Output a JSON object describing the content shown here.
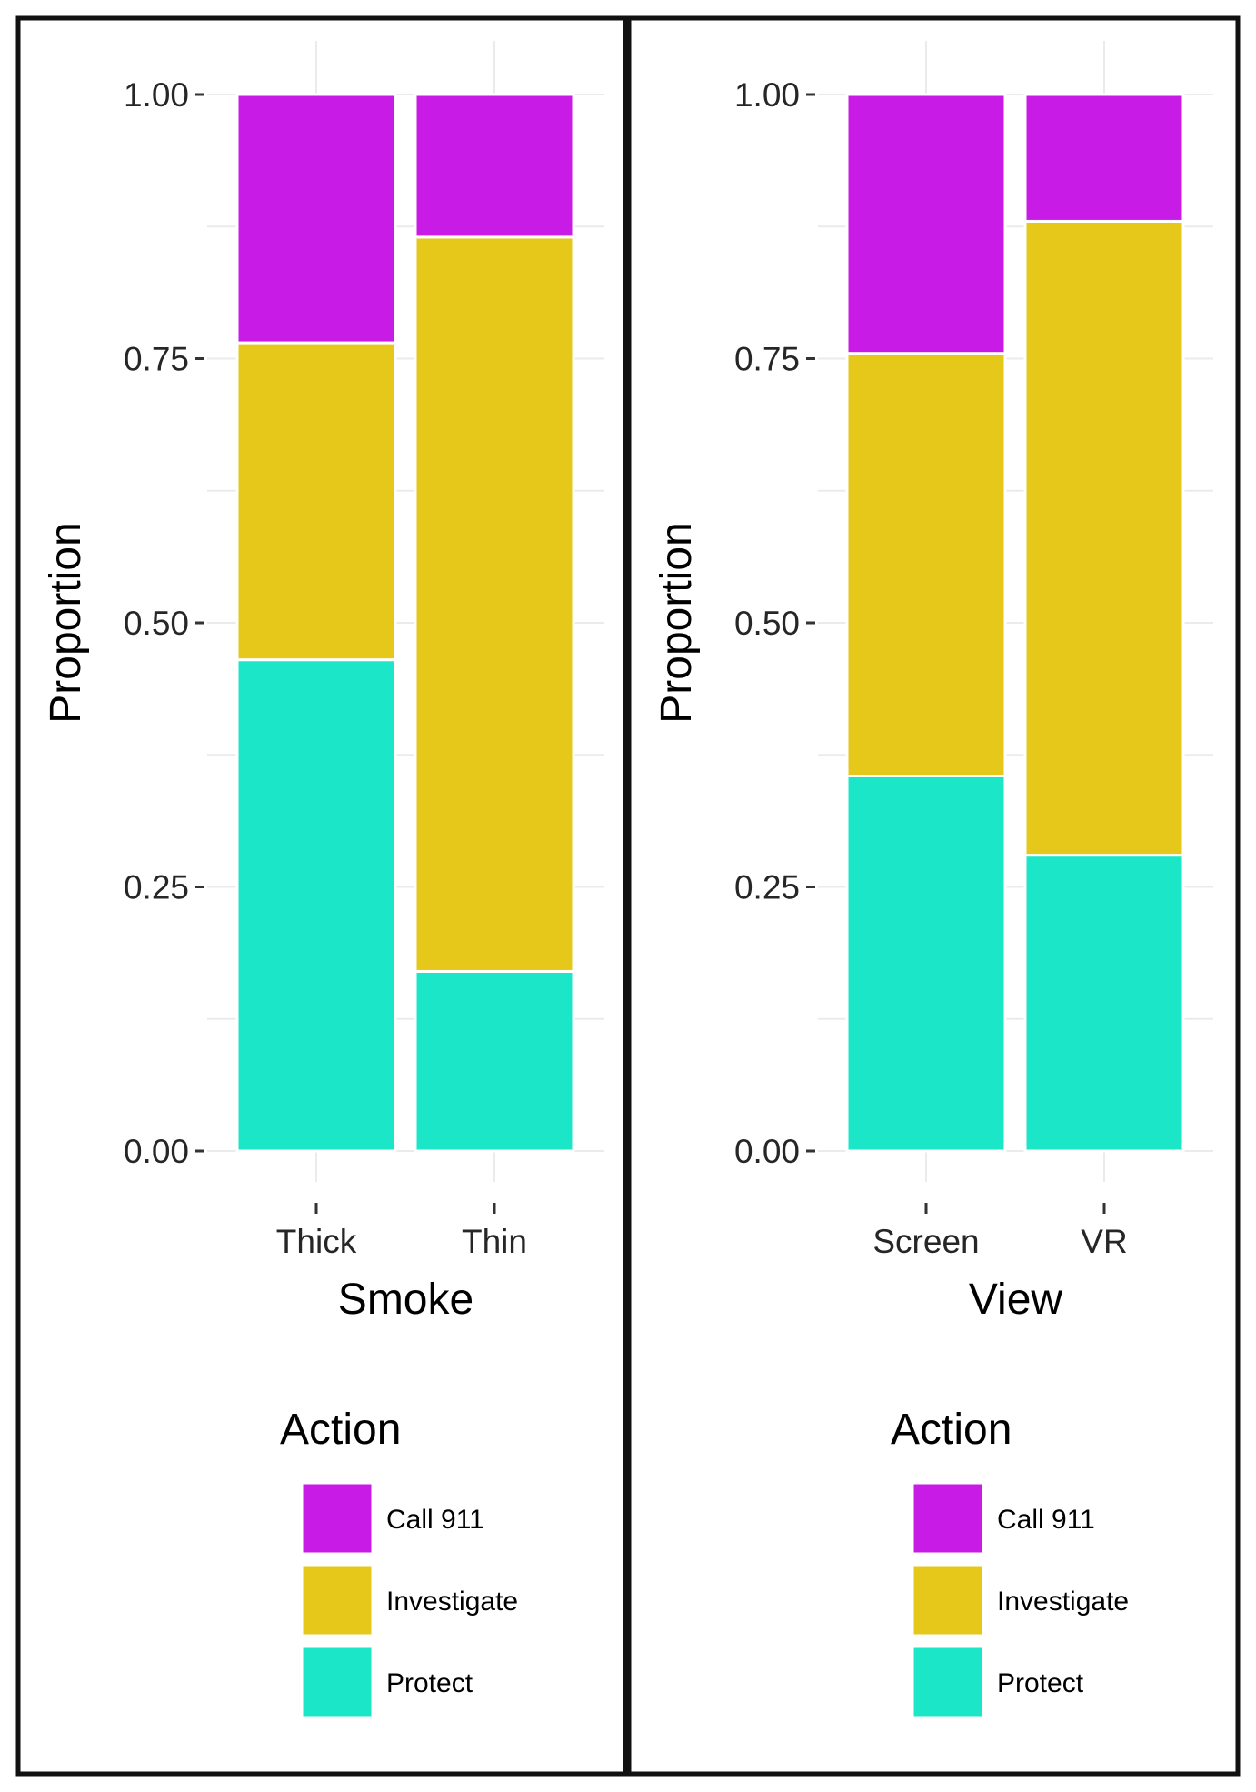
{
  "chart_data": [
    {
      "type": "bar",
      "stacked": true,
      "position": "fill",
      "categories": [
        "Thick",
        "Thin"
      ],
      "series": [
        {
          "name": "Protect",
          "color": "#1ce6c8",
          "values": [
            0.465,
            0.17
          ]
        },
        {
          "name": "Investigate",
          "color": "#e6c81a",
          "values": [
            0.3,
            0.695
          ]
        },
        {
          "name": "Call 911",
          "color": "#c81ce6",
          "values": [
            0.235,
            0.135
          ]
        }
      ],
      "title": "",
      "xlabel": "Smoke",
      "ylabel": "Proportion",
      "ylim": [
        0,
        1
      ],
      "yticks": [
        "0.00",
        "0.25",
        "0.50",
        "0.75",
        "1.00"
      ],
      "legend": {
        "title": "Action",
        "placement": "bottom",
        "items": [
          {
            "label": "Call 911",
            "color": "#c81ce6"
          },
          {
            "label": "Investigate",
            "color": "#e6c81a"
          },
          {
            "label": "Protect",
            "color": "#1ce6c8"
          }
        ]
      }
    },
    {
      "type": "bar",
      "stacked": true,
      "position": "fill",
      "categories": [
        "Screen",
        "VR"
      ],
      "series": [
        {
          "name": "Protect",
          "color": "#1ce6c8",
          "values": [
            0.355,
            0.28
          ]
        },
        {
          "name": "Investigate",
          "color": "#e6c81a",
          "values": [
            0.4,
            0.6
          ]
        },
        {
          "name": "Call 911",
          "color": "#c81ce6",
          "values": [
            0.245,
            0.12
          ]
        }
      ],
      "title": "",
      "xlabel": "View",
      "ylabel": "Proportion",
      "ylim": [
        0,
        1
      ],
      "yticks": [
        "0.00",
        "0.25",
        "0.50",
        "0.75",
        "1.00"
      ],
      "legend": {
        "title": "Action",
        "placement": "bottom",
        "items": [
          {
            "label": "Call 911",
            "color": "#c81ce6"
          },
          {
            "label": "Investigate",
            "color": "#e6c81a"
          },
          {
            "label": "Protect",
            "color": "#1ce6c8"
          }
        ]
      }
    }
  ]
}
